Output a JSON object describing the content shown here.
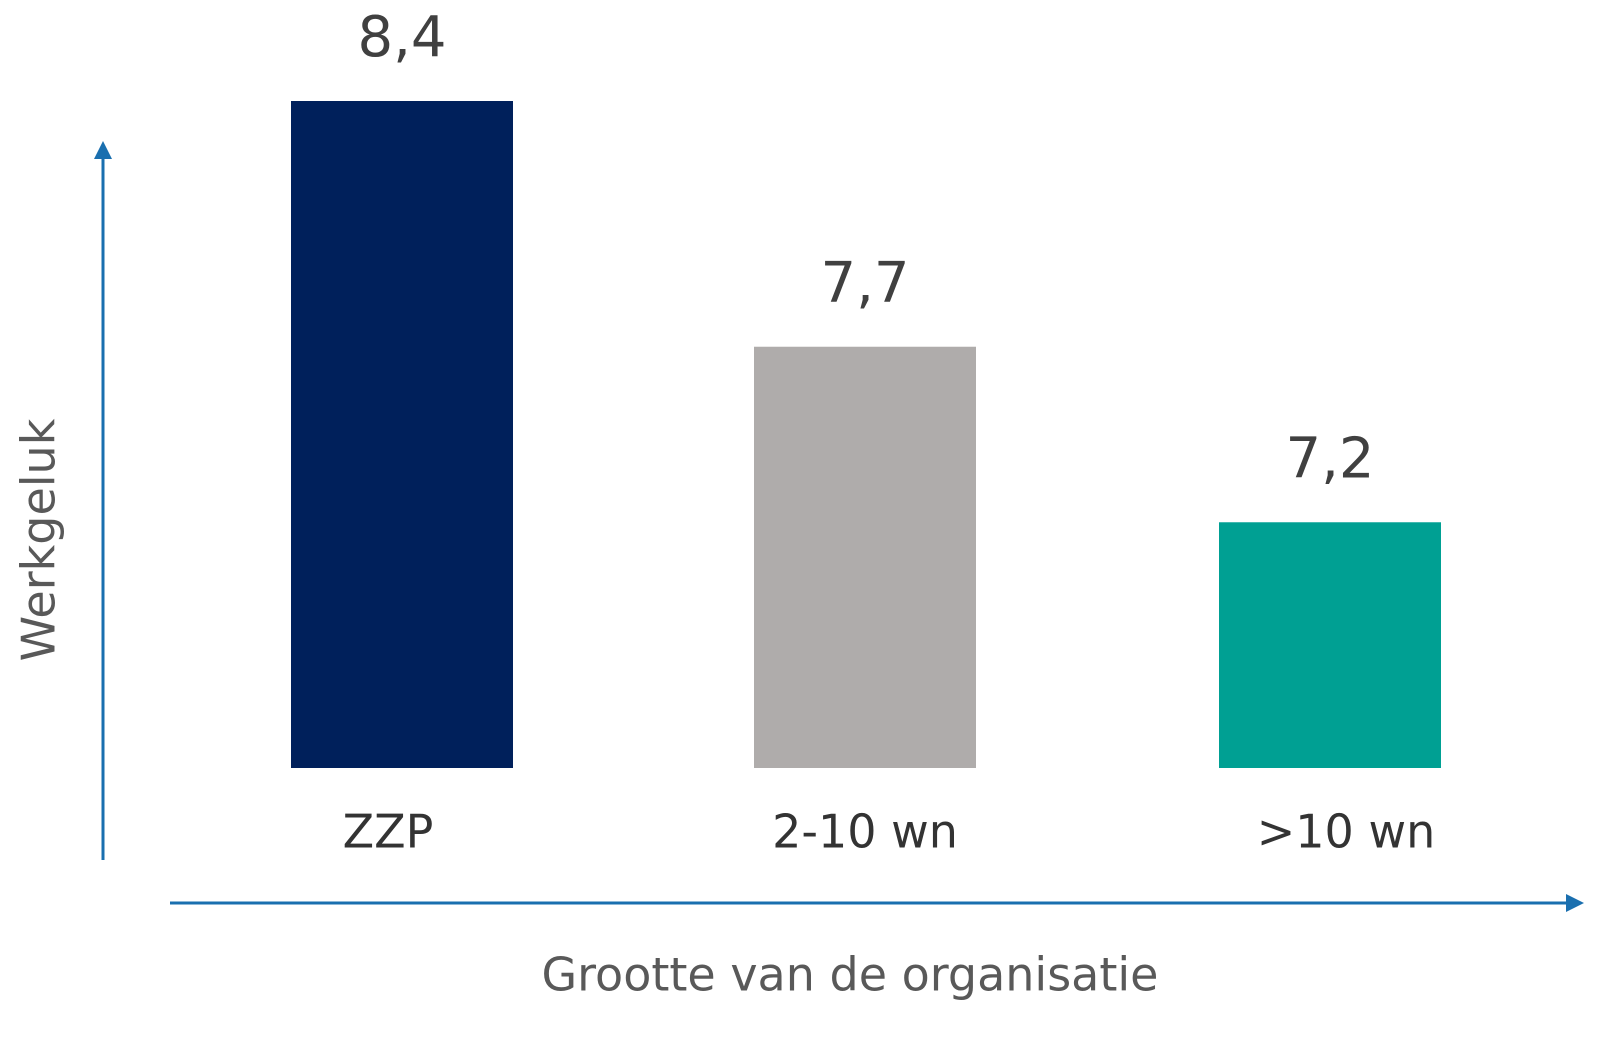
{
  "chart_data": {
    "type": "bar",
    "x_label": "Grootte van de organisatie",
    "y_label": "Werkgeluk",
    "categories": [
      "ZZP",
      "2-10 wn",
      ">10 wn"
    ],
    "values": [
      8.4,
      7.7,
      7.2
    ],
    "value_labels": [
      "8,4",
      "7,7",
      "7,2"
    ],
    "colors": [
      "#00205b",
      "#afacab",
      "#00a093"
    ],
    "ylim": [
      6.5,
      8.4
    ]
  }
}
